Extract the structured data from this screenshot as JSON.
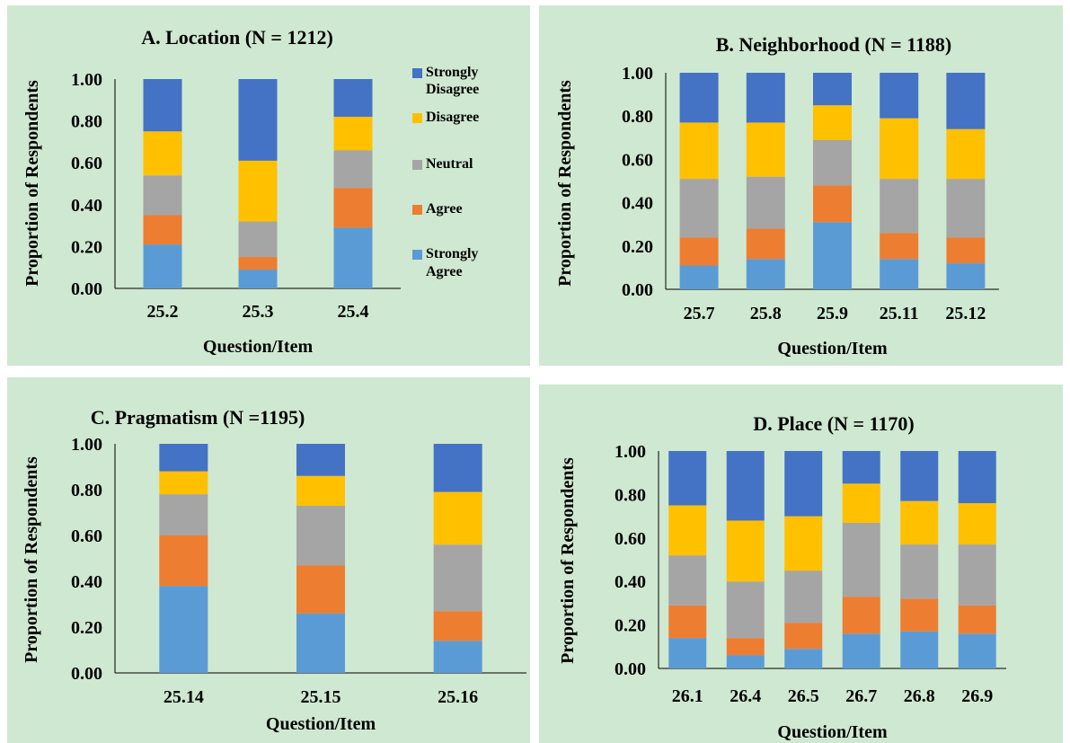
{
  "legend": [
    "Strongly Disagree",
    "Disagree",
    "Neutral",
    "Agree",
    "Strongly Agree"
  ],
  "colors": {
    "Strongly Agree": "#5b9bd5",
    "Agree": "#ed7d31",
    "Neutral": "#a5a5a5",
    "Disagree": "#ffc000",
    "Strongly Disagree": "#4472c4",
    "panel_background": "#cfe8d1"
  },
  "y_ticks": [
    "0.00",
    "0.20",
    "0.40",
    "0.60",
    "0.80",
    "1.00"
  ],
  "chart_data": [
    {
      "type": "bar",
      "stacked": true,
      "title": "A.  Location (N = 1212)",
      "xlabel": "Question/Item",
      "ylabel": "Proportion of Respondents",
      "ylim": [
        0,
        1
      ],
      "legend_position": "right",
      "categories": [
        "25.2",
        "25.3",
        "25.4"
      ],
      "series": [
        {
          "name": "Strongly Agree",
          "values": [
            0.21,
            0.09,
            0.29
          ]
        },
        {
          "name": "Agree",
          "values": [
            0.14,
            0.06,
            0.19
          ]
        },
        {
          "name": "Neutral",
          "values": [
            0.19,
            0.17,
            0.18
          ]
        },
        {
          "name": "Disagree",
          "values": [
            0.21,
            0.29,
            0.16
          ]
        },
        {
          "name": "Strongly Disagree",
          "values": [
            0.25,
            0.39,
            0.18
          ]
        }
      ]
    },
    {
      "type": "bar",
      "stacked": true,
      "title": "B.  Neighborhood (N = 1188)",
      "xlabel": "Question/Item",
      "ylabel": "Proportion of Respondents",
      "ylim": [
        0,
        1
      ],
      "categories": [
        "25.7",
        "25.8",
        "25.9",
        "25.11",
        "25.12"
      ],
      "series": [
        {
          "name": "Strongly Agree",
          "values": [
            0.11,
            0.14,
            0.31,
            0.14,
            0.12
          ]
        },
        {
          "name": "Agree",
          "values": [
            0.13,
            0.14,
            0.17,
            0.12,
            0.12
          ]
        },
        {
          "name": "Neutral",
          "values": [
            0.27,
            0.24,
            0.21,
            0.25,
            0.27
          ]
        },
        {
          "name": "Disagree",
          "values": [
            0.26,
            0.25,
            0.16,
            0.28,
            0.23
          ]
        },
        {
          "name": "Strongly Disagree",
          "values": [
            0.23,
            0.23,
            0.15,
            0.21,
            0.26
          ]
        }
      ]
    },
    {
      "type": "bar",
      "stacked": true,
      "title": "C.  Pragmatism (N =1195)",
      "xlabel": "Question/Item",
      "ylabel": "Proportion of Respondents",
      "ylim": [
        0,
        1
      ],
      "categories": [
        "25.14",
        "25.15",
        "25.16"
      ],
      "series": [
        {
          "name": "Strongly Agree",
          "values": [
            0.38,
            0.26,
            0.14
          ]
        },
        {
          "name": "Agree",
          "values": [
            0.22,
            0.21,
            0.13
          ]
        },
        {
          "name": "Neutral",
          "values": [
            0.18,
            0.26,
            0.29
          ]
        },
        {
          "name": "Disagree",
          "values": [
            0.1,
            0.13,
            0.23
          ]
        },
        {
          "name": "Strongly Disagree",
          "values": [
            0.12,
            0.14,
            0.21
          ]
        }
      ]
    },
    {
      "type": "bar",
      "stacked": true,
      "title": "D.  Place (N = 1170)",
      "xlabel": "Question/Item",
      "ylabel": "Proportion of Respondents",
      "ylim": [
        0,
        1
      ],
      "categories": [
        "26.1",
        "26.4",
        "26.5",
        "26.7",
        "26.8",
        "26.9"
      ],
      "series": [
        {
          "name": "Strongly Agree",
          "values": [
            0.14,
            0.06,
            0.09,
            0.16,
            0.17,
            0.16
          ]
        },
        {
          "name": "Agree",
          "values": [
            0.15,
            0.08,
            0.12,
            0.17,
            0.15,
            0.13
          ]
        },
        {
          "name": "Neutral",
          "values": [
            0.23,
            0.26,
            0.24,
            0.34,
            0.25,
            0.28
          ]
        },
        {
          "name": "Disagree",
          "values": [
            0.23,
            0.28,
            0.25,
            0.18,
            0.2,
            0.19
          ]
        },
        {
          "name": "Strongly Disagree",
          "values": [
            0.25,
            0.32,
            0.3,
            0.15,
            0.23,
            0.24
          ]
        }
      ]
    }
  ]
}
